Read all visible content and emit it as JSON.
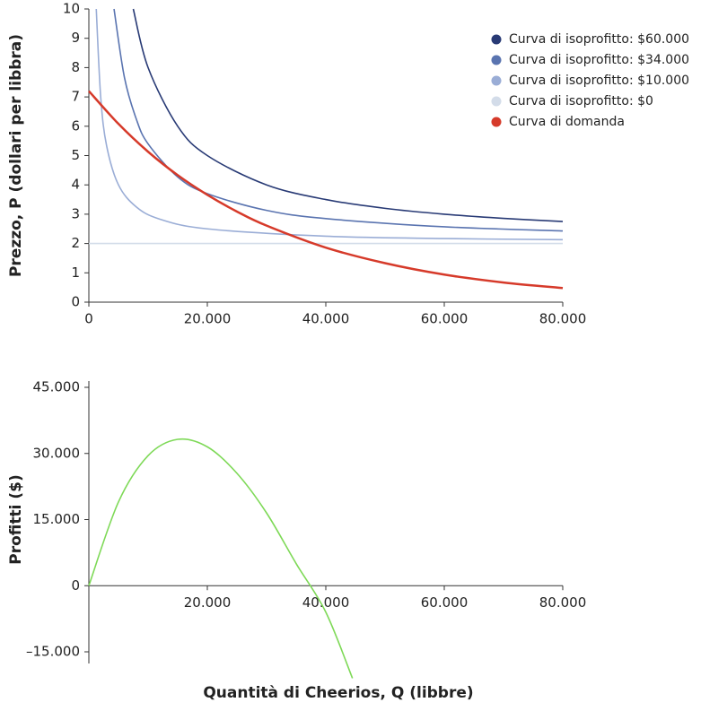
{
  "chart_data": [
    {
      "type": "line",
      "y_label": "Prezzo, P (dollari per libbra)",
      "xlim": [
        0,
        80000
      ],
      "ylim": [
        0,
        10
      ],
      "xticks": [
        0,
        {
          "value": 20000,
          "label": "20.000"
        },
        {
          "value": 40000,
          "label": "40.000"
        },
        {
          "value": 60000,
          "label": "60.000"
        },
        {
          "value": 80000,
          "label": "80.000"
        }
      ],
      "yticks": [
        0,
        1,
        2,
        3,
        4,
        5,
        6,
        7,
        8,
        9,
        10
      ],
      "legend": "upper right",
      "series": [
        {
          "name": "Curva di isoprofitto: $60.000",
          "color": "#283a75",
          "x": [
            7500,
            10000,
            15000,
            20000,
            30000,
            40000,
            50000,
            60000,
            70000,
            80000
          ],
          "values": [
            10,
            8,
            6,
            5,
            4,
            3.5,
            3.2,
            3,
            2.857,
            2.75
          ]
        },
        {
          "name": "Curva di isoprofitto: $34.000",
          "color": "#5a74b0",
          "x": [
            4250,
            6000,
            8000,
            10000,
            15000,
            20000,
            30000,
            40000,
            60000,
            80000
          ],
          "values": [
            10,
            7.67,
            6.25,
            5.4,
            4.27,
            3.7,
            3.13,
            2.85,
            2.57,
            2.43
          ]
        },
        {
          "name": "Curva di isoprofitto: $10.000",
          "color": "#9aadd6",
          "x": [
            1250,
            2000,
            3000,
            5000,
            8000,
            12000,
            20000,
            40000,
            60000,
            80000
          ],
          "values": [
            10,
            7,
            5.33,
            4,
            3.25,
            2.83,
            2.5,
            2.25,
            2.17,
            2.13
          ]
        },
        {
          "name": "Curva di isoprofitto: $0",
          "color": "#d3dce9",
          "x": [
            0,
            80000
          ],
          "values": [
            2,
            2
          ]
        },
        {
          "name": "Curva di domanda",
          "color": "#d63a2a",
          "x": [
            0,
            5000,
            10000,
            15000,
            20000,
            25000,
            30000,
            40000,
            50000,
            60000,
            70000,
            80000
          ],
          "values": [
            7.2,
            6.08,
            5.13,
            4.33,
            3.66,
            3.09,
            2.61,
            1.86,
            1.33,
            0.94,
            0.67,
            0.48
          ]
        }
      ]
    },
    {
      "type": "line",
      "y_label": "Profitti ($)",
      "x_label": "Quantità di Cheerios, Q (libbre)",
      "xlim": [
        0,
        80000
      ],
      "ylim": [
        -15000,
        45000
      ],
      "xticks": [
        {
          "value": 20000,
          "label": "20.000"
        },
        {
          "value": 40000,
          "label": "40.000"
        },
        {
          "value": 60000,
          "label": "60.000"
        },
        {
          "value": 80000,
          "label": "80.000"
        }
      ],
      "yticks": [
        {
          "value": -15000,
          "label": "–15.000"
        },
        0,
        {
          "value": 15000,
          "label": "15.000"
        },
        {
          "value": 30000,
          "label": "30.000"
        },
        {
          "value": 45000,
          "label": "45.000"
        }
      ],
      "series": [
        {
          "color": "#7ed957",
          "x": [
            0,
            5000,
            10000,
            15000,
            20000,
            25000,
            30000,
            35000,
            40000,
            44500
          ],
          "values": [
            0,
            19000,
            29500,
            33200,
            31500,
            25500,
            16500,
            5000,
            -6000,
            -21000
          ]
        }
      ]
    }
  ]
}
